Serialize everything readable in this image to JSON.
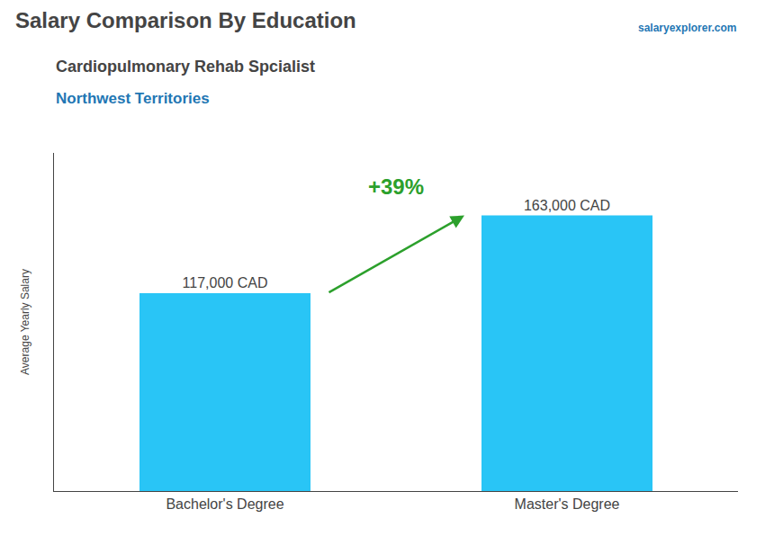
{
  "chart_data": {
    "type": "bar",
    "title": "Salary Comparison By Education",
    "subtitle": [
      "Cardiopulmonary Rehab Spcialist",
      "Northwest Territories"
    ],
    "annotations": [
      "salaryexplorer.com",
      "+39%"
    ],
    "ylabel": "Average Yearly Salary",
    "categories": [
      "Bachelor's Degree",
      "Master's Degree"
    ],
    "values": [
      117000,
      163000
    ],
    "value_labels": [
      "117,000 CAD",
      "163,000 CAD"
    ],
    "data_labels": true,
    "color": "#29C5F6",
    "ylim": [
      0,
      200000
    ],
    "grid": false,
    "tick_labels": "x"
  }
}
